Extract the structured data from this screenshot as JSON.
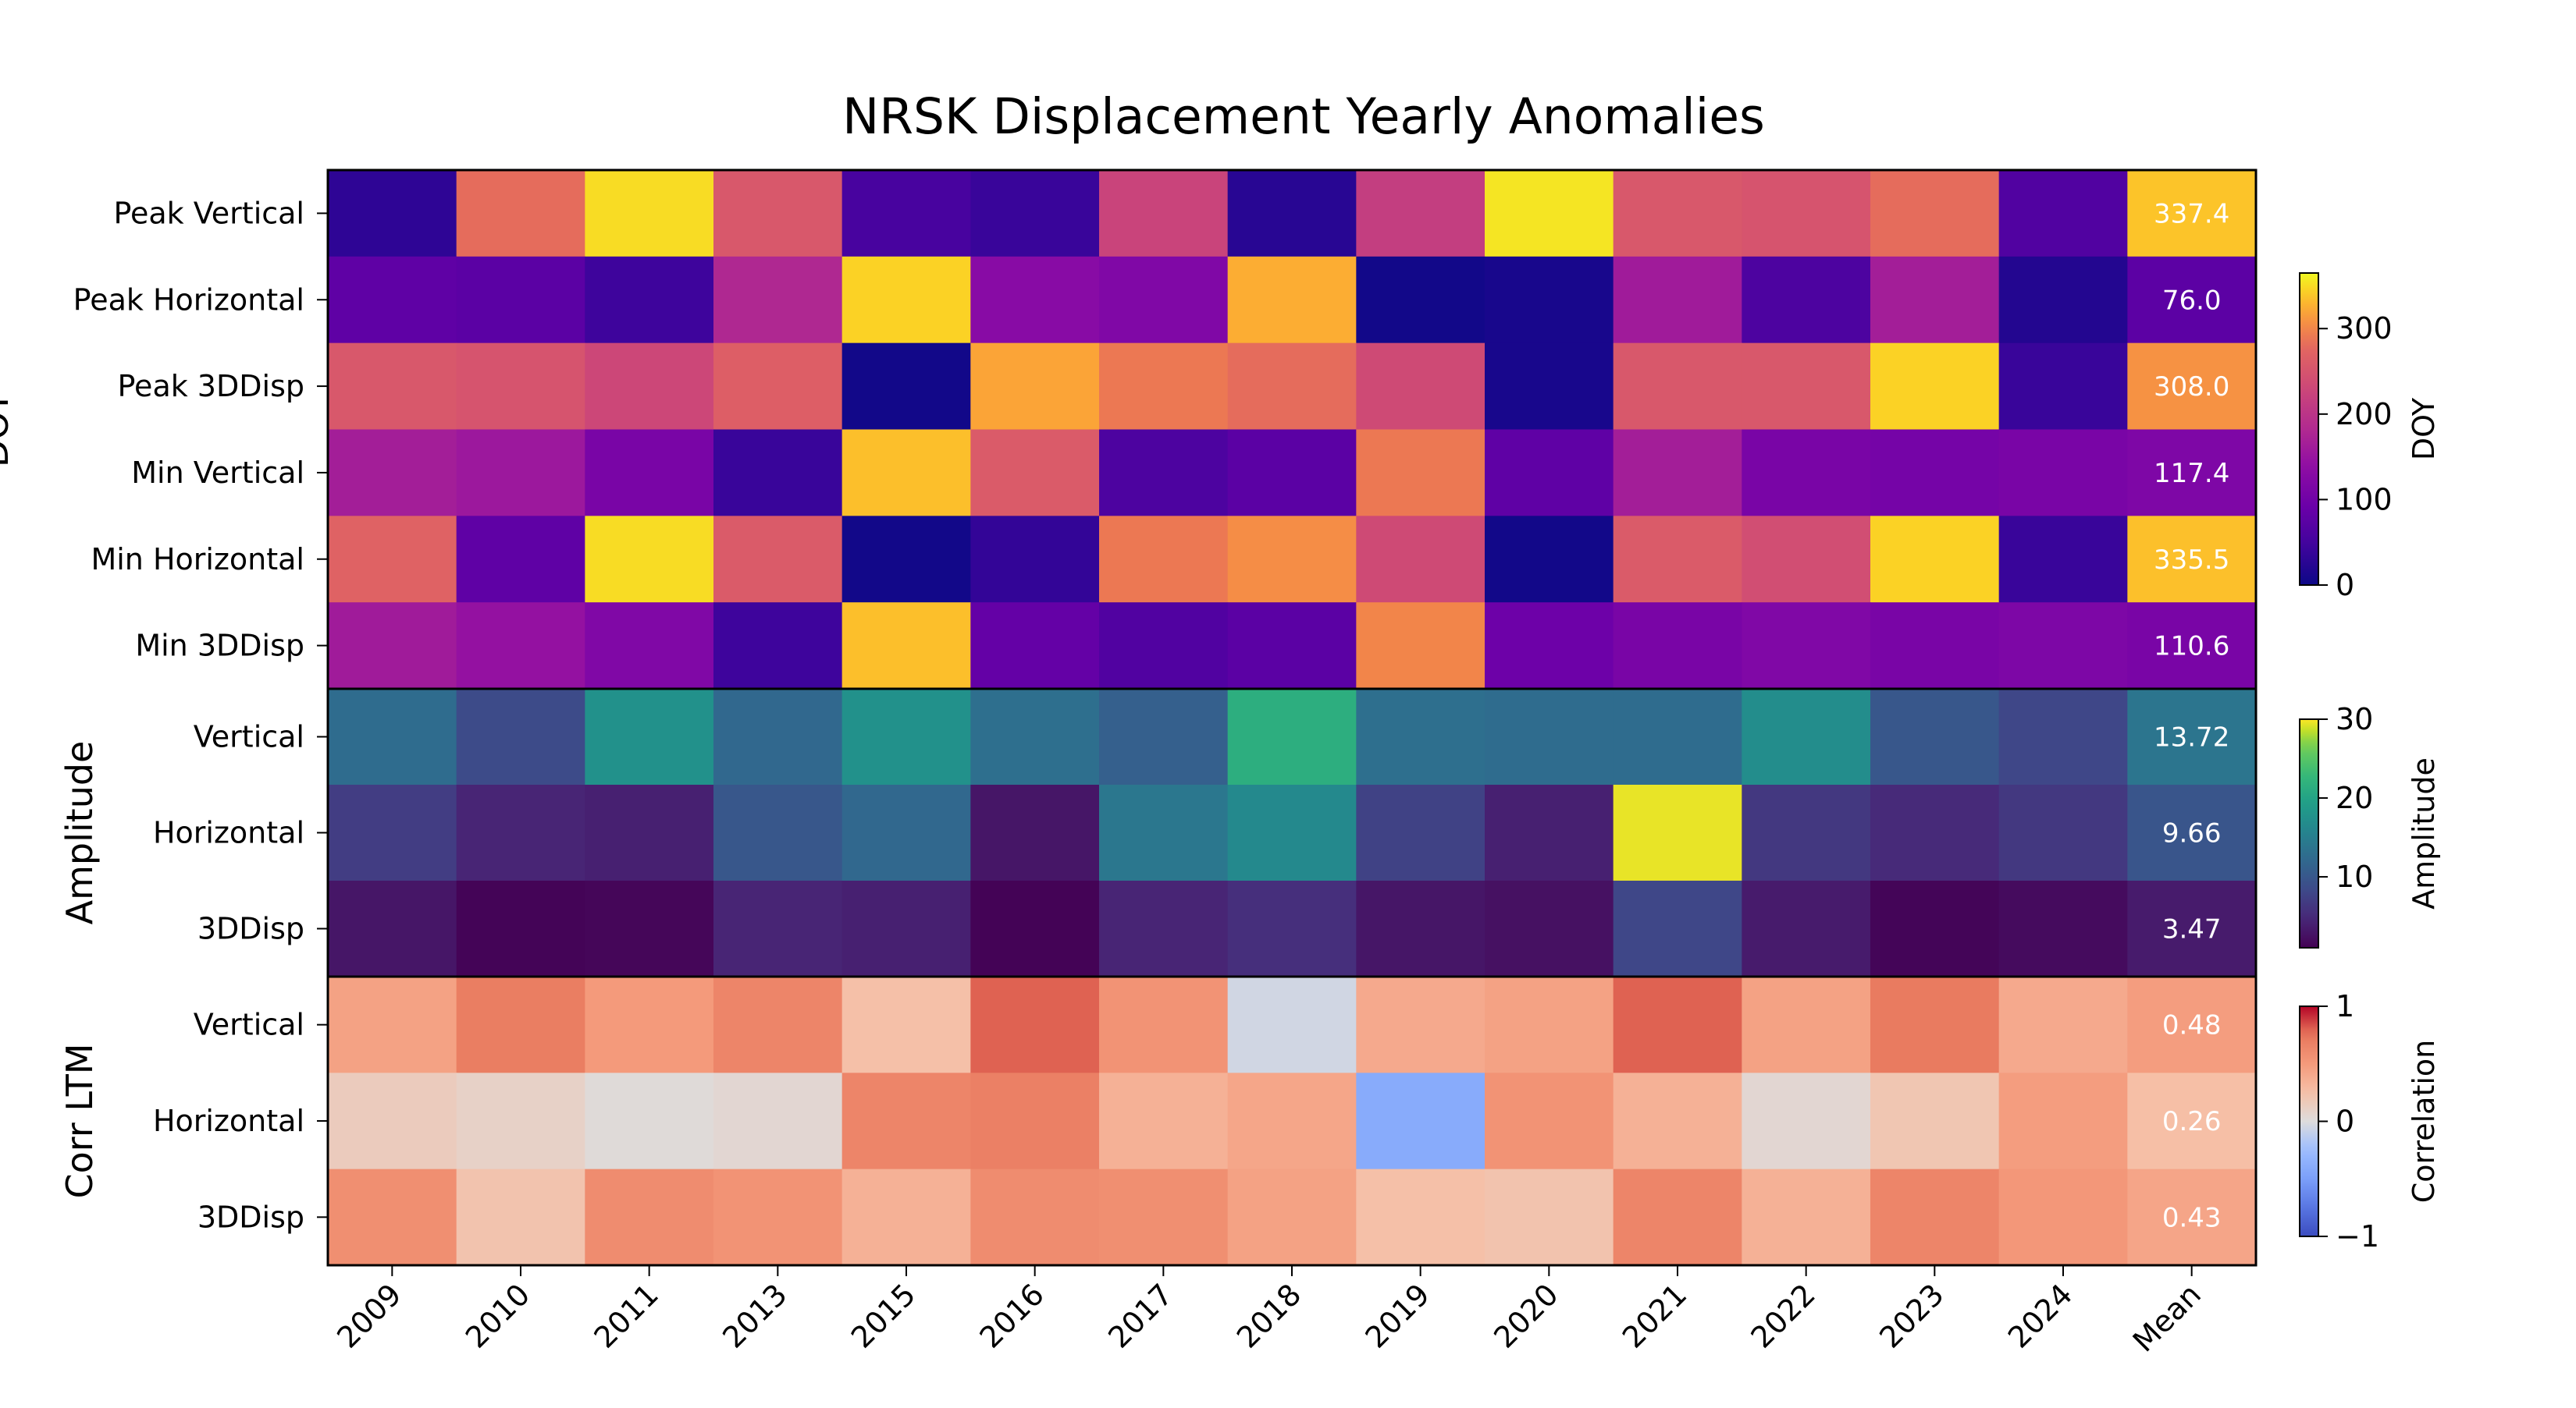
{
  "chart_data": {
    "type": "heatmap",
    "title": "NRSK Displacement Yearly Anomalies",
    "columns": [
      "2009",
      "2010",
      "2011",
      "2013",
      "2015",
      "2016",
      "2017",
      "2018",
      "2019",
      "2020",
      "2021",
      "2022",
      "2023",
      "2024",
      "Mean"
    ],
    "panels": [
      {
        "group_label": "DOY",
        "colormap": "plasma",
        "range": [
          0,
          365
        ],
        "value_decimals": 1,
        "colorbar": {
          "label": "DOY",
          "ticks": [
            0,
            100,
            200,
            300
          ]
        },
        "rows": [
          {
            "label": "Peak Vertical",
            "values": [
              30,
              280,
              350,
              255,
              55,
              40,
              225,
              25,
              215,
              355,
              255,
              250,
              280,
              65,
              337.4
            ]
          },
          {
            "label": "Peak Horizontal",
            "values": [
              80,
              75,
              45,
              180,
              345,
              130,
              120,
              325,
              5,
              10,
              160,
              60,
              165,
              20,
              76.0
            ]
          },
          {
            "label": "Peak 3DDisp",
            "values": [
              255,
              250,
              230,
              265,
              5,
              320,
              290,
              280,
              235,
              10,
              255,
              255,
              345,
              40,
              308.0
            ]
          },
          {
            "label": "Min Vertical",
            "values": [
              165,
              155,
              110,
              40,
              335,
              260,
              60,
              75,
              290,
              80,
              165,
              110,
              105,
              110,
              117.4
            ]
          },
          {
            "label": "Min Horizontal",
            "values": [
              270,
              80,
              350,
              260,
              5,
              35,
              290,
              305,
              235,
              5,
              260,
              240,
              345,
              40,
              335.5
            ]
          },
          {
            "label": "Min 3DDisp",
            "values": [
              160,
              145,
              120,
              45,
              335,
              85,
              65,
              75,
              300,
              95,
              110,
              120,
              110,
              115,
              110.6
            ]
          }
        ]
      },
      {
        "group_label": "Amplitude",
        "colormap": "viridis",
        "range": [
          1,
          30
        ],
        "value_decimals": 2,
        "colorbar": {
          "label": "Amplitude",
          "ticks": [
            10,
            20,
            30
          ]
        },
        "rows": [
          {
            "label": "Vertical",
            "values": [
              12.5,
              8.5,
              17.5,
              12,
              17.5,
              13,
              11,
              21.5,
              13,
              12.5,
              12.5,
              17,
              10,
              8,
              13.72
            ]
          },
          {
            "label": "Horizontal",
            "values": [
              7,
              4.5,
              4,
              10,
              12,
              3,
              14,
              16.5,
              7.5,
              4,
              29.5,
              6.5,
              5,
              6.5,
              9.66
            ]
          },
          {
            "label": "3DDisp",
            "values": [
              3,
              1.3,
              1.5,
              4.5,
              4,
              1.2,
              4.5,
              5.5,
              3,
              2.5,
              8,
              3.5,
              1.4,
              2,
              3.47
            ]
          }
        ]
      },
      {
        "group_label": "Corr LTM",
        "colormap": "coolwarm",
        "range": [
          -1,
          1
        ],
        "value_decimals": 2,
        "colorbar": {
          "label": "Correlation",
          "ticks": [
            -1,
            0,
            1
          ]
        },
        "rows": [
          {
            "label": "Vertical",
            "values": [
              0.45,
              0.7,
              0.5,
              0.65,
              0.25,
              0.8,
              0.55,
              -0.05,
              0.4,
              0.45,
              0.8,
              0.45,
              0.72,
              0.4,
              0.48
            ]
          },
          {
            "label": "Horizontal",
            "values": [
              0.15,
              0.1,
              0.02,
              0.05,
              0.65,
              0.68,
              0.35,
              0.42,
              -0.4,
              0.55,
              0.35,
              0.05,
              0.2,
              0.48,
              0.26
            ]
          },
          {
            "label": "3DDisp",
            "values": [
              0.58,
              0.22,
              0.6,
              0.55,
              0.35,
              0.6,
              0.58,
              0.45,
              0.25,
              0.22,
              0.65,
              0.35,
              0.65,
              0.52,
              0.43
            ]
          }
        ]
      }
    ],
    "grid": false,
    "legend": "colorbars-right"
  }
}
